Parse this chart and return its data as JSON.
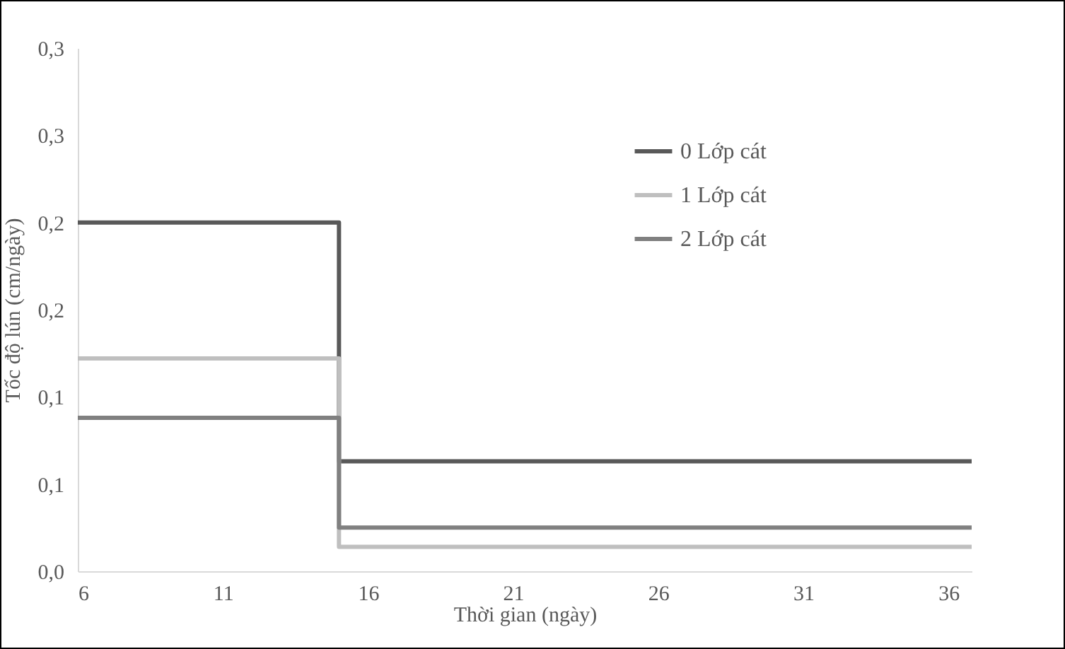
{
  "chart_data": {
    "type": "step",
    "xlabel": "Thời gian (ngày)",
    "ylabel": "Tốc độ lún (cm/ngày)",
    "xlim": [
      6,
      36.8
    ],
    "xticks": [
      6,
      11,
      16,
      21,
      26,
      31,
      36
    ],
    "ylim": [
      0,
      0.3
    ],
    "yticks": [
      {
        "value": 0,
        "label": "0,0"
      },
      {
        "value": 0.05,
        "label": "0,1"
      },
      {
        "value": 0.1,
        "label": "0,1"
      },
      {
        "value": 0.15,
        "label": "0,2"
      },
      {
        "value": 0.2,
        "label": "0,2"
      },
      {
        "value": 0.25,
        "label": "0,3"
      },
      {
        "value": 0.3,
        "label": "0,3"
      }
    ],
    "grid": false,
    "legend": "top right",
    "marker": "none",
    "line_style": "solid",
    "series": [
      {
        "name": "0 Lớp cát",
        "color": "#595959",
        "x": [
          6,
          15,
          36.8
        ],
        "values": [
          0.2,
          0.063,
          0.063
        ]
      },
      {
        "name": "1 Lớp cát",
        "color": "#bfbfbf",
        "x": [
          6,
          15,
          36.8
        ],
        "values": [
          0.122,
          0.014,
          0.014
        ]
      },
      {
        "name": "2 Lớp cát",
        "color": "#808080",
        "x": [
          6,
          15,
          36.8
        ],
        "values": [
          0.088,
          0.025,
          0.025
        ]
      }
    ]
  }
}
